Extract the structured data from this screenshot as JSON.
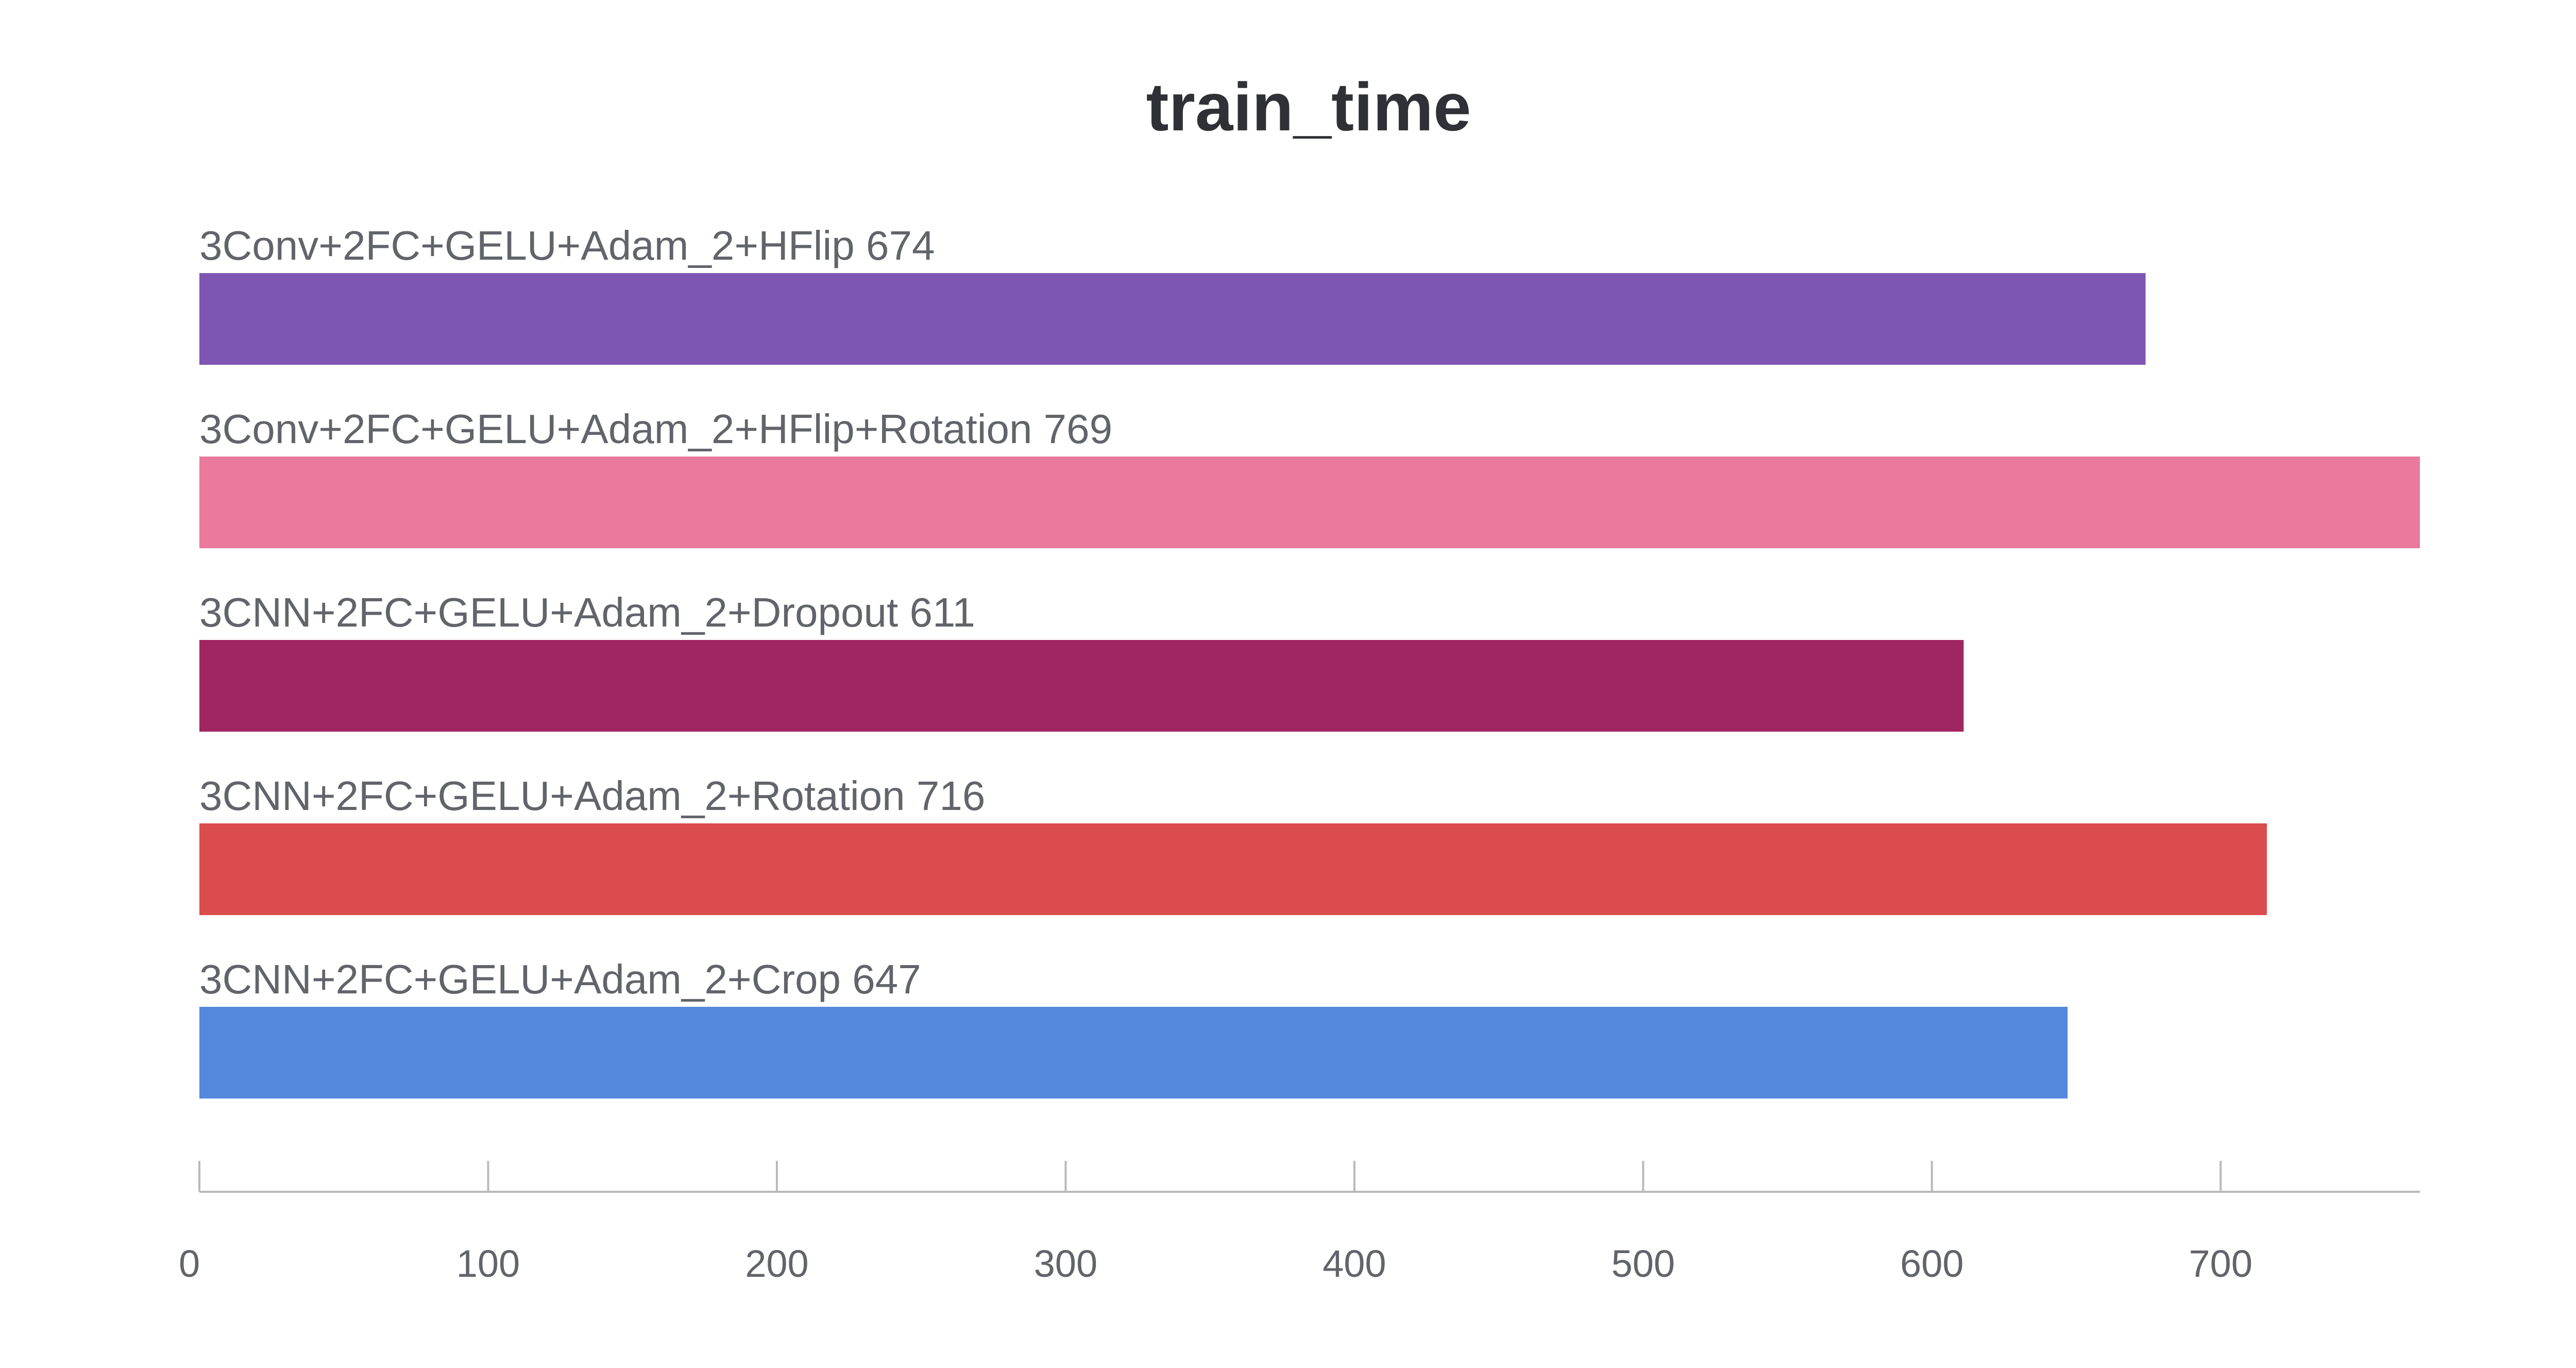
{
  "chart_data": {
    "type": "bar",
    "orientation": "horizontal",
    "title": "train_time",
    "xlabel": "",
    "ylabel": "",
    "xlim": [
      0,
      769
    ],
    "x_ticks": [
      0,
      100,
      200,
      300,
      400,
      500,
      600,
      700
    ],
    "grid": false,
    "legend": "none",
    "bars": [
      {
        "label": "3Conv+2FC+GELU+Adam_2+HFlip",
        "value": 674,
        "value_label": "674",
        "color": "#7f55b4"
      },
      {
        "label": "3Conv+2FC+GELU+Adam_2+HFlip+Rotation",
        "value": 769,
        "value_label": "769",
        "color": "#e97a9e"
      },
      {
        "label": "3CNN+2FC+GELU+Adam_2+Dropout",
        "value": 611,
        "value_label": "611",
        "color": "#a02662"
      },
      {
        "label": "3CNN+2FC+GELU+Adam_2+Rotation",
        "value": 716,
        "value_label": "716",
        "color": "#da4d4c"
      },
      {
        "label": "3CNN+2FC+GELU+Adam_2+Crop",
        "value": 647,
        "value_label": "647",
        "color": "#5488dd"
      }
    ]
  }
}
